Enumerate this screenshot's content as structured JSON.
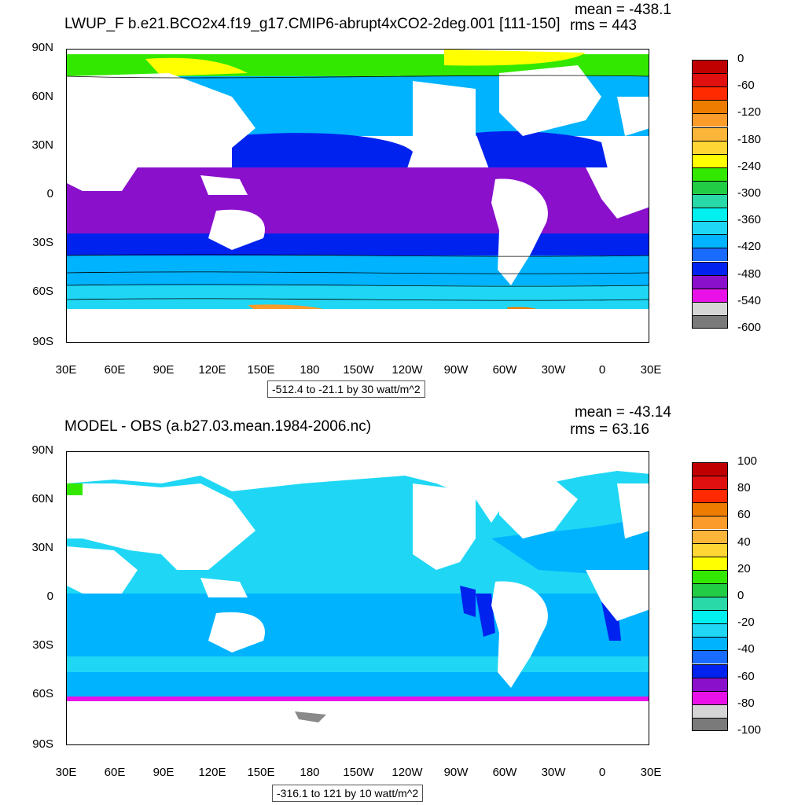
{
  "panels": [
    {
      "title": "LWUP_F b.e21.BCO2x4.f19_g17.CMIP6-abrupt4xCO2-2deg.001 [111-150]",
      "mean": "mean = -438.1",
      "rms": "rms = 443",
      "range": "-512.4 to -21.1 by 30 watt/m^2",
      "lat_labels": [
        "90N",
        "60N",
        "30N",
        "0",
        "30S",
        "60S",
        "90S"
      ],
      "lon_labels": [
        "30E",
        "60E",
        "90E",
        "120E",
        "150E",
        "180",
        "150W",
        "120W",
        "90W",
        "60W",
        "30W",
        "0",
        "30E"
      ],
      "colorbar": {
        "labels": [
          "0",
          "-60",
          "-120",
          "-180",
          "-240",
          "-300",
          "-360",
          "-420",
          "-480",
          "-540",
          "-600"
        ],
        "colors": [
          "#c00000",
          "#e01010",
          "#ff2a00",
          "#ee7c00",
          "#fa9b2a",
          "#fbb63a",
          "#ffd633",
          "#ffff00",
          "#33e800",
          "#22cc44",
          "#2ad9a8",
          "#00f0f0",
          "#1fd7f5",
          "#00b3ff",
          "#1a6bff",
          "#0022ee",
          "#8a10cc",
          "#e812e8",
          "#d5d5d5",
          "#7a7a7a"
        ]
      }
    },
    {
      "title": "MODEL - OBS (a.b27.03.mean.1984-2006.nc)",
      "mean": "mean = -43.14",
      "rms": "rms = 63.16",
      "range": "-316.1 to 121 by 10 watt/m^2",
      "lat_labels": [
        "90N",
        "60N",
        "30N",
        "0",
        "30S",
        "60S",
        "90S"
      ],
      "lon_labels": [
        "30E",
        "60E",
        "90E",
        "120E",
        "150E",
        "180",
        "150W",
        "120W",
        "90W",
        "60W",
        "30W",
        "0",
        "30E"
      ],
      "colorbar": {
        "labels": [
          "100",
          "80",
          "60",
          "40",
          "20",
          "0",
          "-20",
          "-40",
          "-60",
          "-80",
          "-100"
        ],
        "colors": [
          "#c00000",
          "#e01010",
          "#ff2a00",
          "#ee7c00",
          "#fa9b2a",
          "#fbb63a",
          "#ffd633",
          "#ffff00",
          "#33e800",
          "#22cc44",
          "#2ad9a8",
          "#00f0f0",
          "#1fd7f5",
          "#00b3ff",
          "#1a6bff",
          "#0022ee",
          "#8a10cc",
          "#e812e8",
          "#d5d5d5",
          "#7a7a7a"
        ]
      }
    }
  ]
}
